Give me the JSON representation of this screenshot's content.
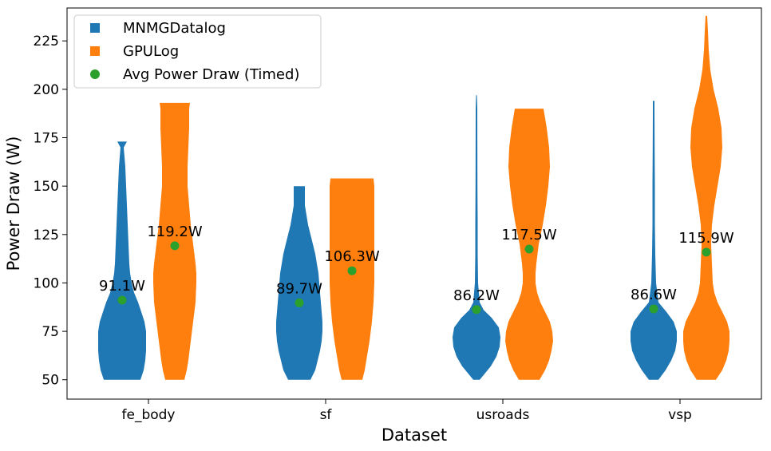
{
  "chart_data": {
    "type": "violin",
    "title": "",
    "xlabel": "Dataset",
    "ylabel": "Power Draw (W)",
    "categories": [
      "fe_body",
      "sf",
      "usroads",
      "vsp"
    ],
    "ylim": [
      40,
      242
    ],
    "yticks": [
      50,
      75,
      100,
      125,
      150,
      175,
      200,
      225
    ],
    "grid": false,
    "legend_position": "top-left",
    "legend": [
      {
        "label": "MNMGDatalog",
        "marker": "square",
        "color": "#1f77b4"
      },
      {
        "label": "GPULog",
        "marker": "square",
        "color": "#ff7f0e"
      },
      {
        "label": "Avg Power Draw (Timed)",
        "marker": "circle",
        "color": "#2ca02c"
      }
    ],
    "series": [
      {
        "name": "MNMGDatalog",
        "color": "#1f77b4",
        "violins": [
          {
            "min": 50,
            "max": 173,
            "profile": [
              [
                50,
                23
              ],
              [
                55,
                27
              ],
              [
                60,
                29
              ],
              [
                65,
                30
              ],
              [
                70,
                30
              ],
              [
                75,
                30
              ],
              [
                80,
                28
              ],
              [
                85,
                24
              ],
              [
                90,
                20
              ],
              [
                95,
                15
              ],
              [
                100,
                12
              ],
              [
                105,
                10
              ],
              [
                110,
                9
              ],
              [
                120,
                8
              ],
              [
                130,
                7
              ],
              [
                140,
                6
              ],
              [
                150,
                5
              ],
              [
                160,
                4
              ],
              [
                165,
                3
              ],
              [
                170,
                2
              ],
              [
                173,
                6
              ]
            ]
          },
          {
            "min": 50,
            "max": 150,
            "profile": [
              [
                50,
                14
              ],
              [
                55,
                20
              ],
              [
                60,
                23
              ],
              [
                65,
                26
              ],
              [
                70,
                28
              ],
              [
                75,
                29
              ],
              [
                80,
                29
              ],
              [
                85,
                28
              ],
              [
                90,
                27
              ],
              [
                95,
                26
              ],
              [
                100,
                25
              ],
              [
                105,
                24
              ],
              [
                110,
                22
              ],
              [
                115,
                20
              ],
              [
                120,
                17
              ],
              [
                125,
                14
              ],
              [
                130,
                11
              ],
              [
                135,
                9
              ],
              [
                140,
                7
              ],
              [
                145,
                7
              ],
              [
                150,
                7
              ]
            ]
          },
          {
            "min": 50,
            "max": 197,
            "profile": [
              [
                50,
                4
              ],
              [
                53,
                10
              ],
              [
                57,
                18
              ],
              [
                62,
                25
              ],
              [
                67,
                29
              ],
              [
                72,
                30
              ],
              [
                77,
                28
              ],
              [
                82,
                19
              ],
              [
                86,
                9
              ],
              [
                90,
                4
              ],
              [
                100,
                2
              ],
              [
                115,
                1.5
              ],
              [
                130,
                1.5
              ],
              [
                150,
                1.2
              ],
              [
                170,
                1.1
              ],
              [
                190,
                1
              ],
              [
                197,
                0.5
              ]
            ]
          },
          {
            "min": 50,
            "max": 194,
            "profile": [
              [
                50,
                6
              ],
              [
                55,
                15
              ],
              [
                60,
                22
              ],
              [
                65,
                27
              ],
              [
                70,
                29
              ],
              [
                75,
                29
              ],
              [
                80,
                25
              ],
              [
                85,
                16
              ],
              [
                90,
                6
              ],
              [
                100,
                3
              ],
              [
                115,
                2
              ],
              [
                130,
                1.5
              ],
              [
                150,
                1.5
              ],
              [
                170,
                1.2
              ],
              [
                190,
                1
              ],
              [
                194,
                1
              ]
            ]
          }
        ]
      },
      {
        "name": "GPULog",
        "color": "#ff7f0e",
        "violins": [
          {
            "min": 50,
            "max": 193,
            "profile": [
              [
                50,
                12
              ],
              [
                55,
                15
              ],
              [
                60,
                17
              ],
              [
                70,
                20
              ],
              [
                80,
                23
              ],
              [
                90,
                26
              ],
              [
                100,
                27
              ],
              [
                105,
                27
              ],
              [
                110,
                26
              ],
              [
                120,
                23
              ],
              [
                130,
                20
              ],
              [
                140,
                18
              ],
              [
                150,
                16
              ],
              [
                160,
                16
              ],
              [
                170,
                17
              ],
              [
                180,
                18
              ],
              [
                190,
                18
              ],
              [
                193,
                19
              ]
            ]
          },
          {
            "min": 50,
            "max": 154,
            "profile": [
              [
                50,
                13
              ],
              [
                55,
                16
              ],
              [
                60,
                18
              ],
              [
                70,
                22
              ],
              [
                80,
                25
              ],
              [
                90,
                27
              ],
              [
                100,
                28
              ],
              [
                110,
                28
              ],
              [
                120,
                28
              ],
              [
                130,
                28
              ],
              [
                140,
                28
              ],
              [
                150,
                28
              ],
              [
                154,
                27
              ]
            ]
          },
          {
            "min": 50,
            "max": 190,
            "profile": [
              [
                50,
                13
              ],
              [
                55,
                20
              ],
              [
                60,
                25
              ],
              [
                65,
                28
              ],
              [
                70,
                30
              ],
              [
                75,
                29
              ],
              [
                80,
                26
              ],
              [
                85,
                20
              ],
              [
                90,
                14
              ],
              [
                95,
                10
              ],
              [
                100,
                8
              ],
              [
                105,
                8
              ],
              [
                110,
                9
              ],
              [
                120,
                12
              ],
              [
                130,
                17
              ],
              [
                140,
                21
              ],
              [
                150,
                24
              ],
              [
                160,
                26
              ],
              [
                170,
                25
              ],
              [
                180,
                22
              ],
              [
                190,
                18
              ]
            ]
          },
          {
            "min": 50,
            "max": 238,
            "profile": [
              [
                50,
                12
              ],
              [
                55,
                20
              ],
              [
                60,
                25
              ],
              [
                65,
                28
              ],
              [
                70,
                29
              ],
              [
                75,
                29
              ],
              [
                80,
                26
              ],
              [
                85,
                20
              ],
              [
                90,
                14
              ],
              [
                95,
                10
              ],
              [
                100,
                8
              ],
              [
                110,
                7
              ],
              [
                120,
                6
              ],
              [
                130,
                7
              ],
              [
                140,
                10
              ],
              [
                150,
                14
              ],
              [
                160,
                18
              ],
              [
                170,
                20
              ],
              [
                180,
                19
              ],
              [
                190,
                15
              ],
              [
                200,
                9
              ],
              [
                210,
                5
              ],
              [
                220,
                3
              ],
              [
                230,
                2
              ],
              [
                238,
                1
              ]
            ]
          }
        ]
      }
    ],
    "avg_power": {
      "name": "Avg Power Draw (Timed)",
      "color": "#2ca02c",
      "points": [
        {
          "category": "fe_body",
          "series": "MNMGDatalog",
          "value": 91.1,
          "label": "91.1W"
        },
        {
          "category": "fe_body",
          "series": "GPULog",
          "value": 119.2,
          "label": "119.2W"
        },
        {
          "category": "sf",
          "series": "MNMGDatalog",
          "value": 89.7,
          "label": "89.7W"
        },
        {
          "category": "sf",
          "series": "GPULog",
          "value": 106.3,
          "label": "106.3W"
        },
        {
          "category": "usroads",
          "series": "MNMGDatalog",
          "value": 86.2,
          "label": "86.2W"
        },
        {
          "category": "usroads",
          "series": "GPULog",
          "value": 117.5,
          "label": "117.5W"
        },
        {
          "category": "vsp",
          "series": "MNMGDatalog",
          "value": 86.6,
          "label": "86.6W"
        },
        {
          "category": "vsp",
          "series": "GPULog",
          "value": 115.9,
          "label": "115.9W"
        }
      ]
    }
  }
}
